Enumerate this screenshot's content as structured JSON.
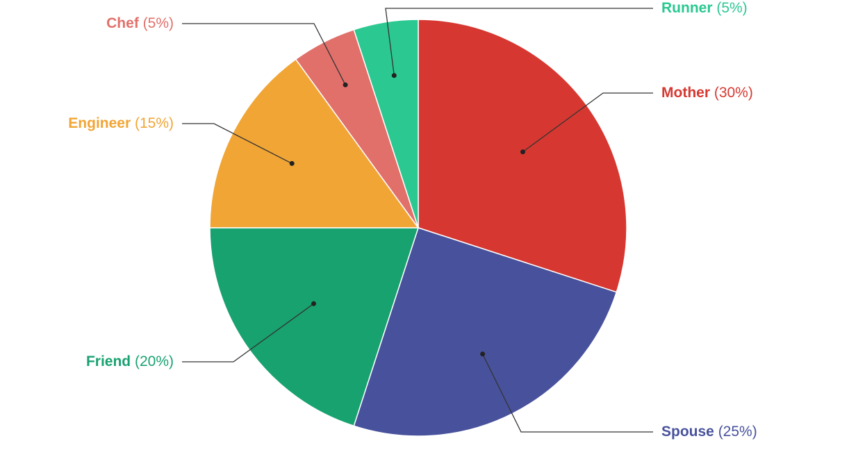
{
  "chart_data": {
    "type": "pie",
    "title": "",
    "slices": [
      {
        "name": "Mother",
        "value": 30,
        "pct_label": "(30%)",
        "color": "#d63831"
      },
      {
        "name": "Spouse",
        "value": 25,
        "pct_label": "(25%)",
        "color": "#48529c"
      },
      {
        "name": "Friend",
        "value": 20,
        "pct_label": "(20%)",
        "color": "#18a270"
      },
      {
        "name": "Engineer",
        "value": 15,
        "pct_label": "(15%)",
        "color": "#f1a535"
      },
      {
        "name": "Chef",
        "value": 5,
        "pct_label": "(5%)",
        "color": "#e1706b"
      },
      {
        "name": "Runner",
        "value": 5,
        "pct_label": "(5%)",
        "color": "#2bc891"
      }
    ],
    "legend": "none",
    "labels": "outside with leader lines"
  }
}
